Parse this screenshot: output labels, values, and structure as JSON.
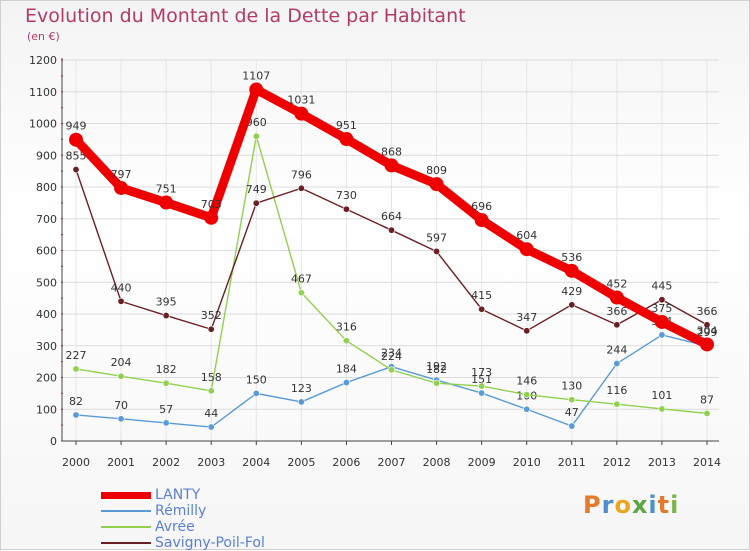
{
  "header": {
    "title": "Evolution du Montant de la Dette par Habitant",
    "subtitle": "(en €)"
  },
  "chart_data": {
    "type": "line",
    "x": [
      "2000",
      "2001",
      "2002",
      "2003",
      "2004",
      "2005",
      "2006",
      "2007",
      "2008",
      "2009",
      "2010",
      "2011",
      "2012",
      "2013",
      "2014"
    ],
    "ylim": [
      0,
      1200
    ],
    "yticks": [
      "0",
      "100",
      "200",
      "300",
      "400",
      "500",
      "600",
      "700",
      "800",
      "900",
      "1000",
      "1100",
      "1200"
    ],
    "grid": true,
    "legend_position": "bottom-left",
    "series": [
      {
        "name": "LANTY",
        "color": "#ee0000",
        "values": [
          949,
          797,
          751,
          703,
          1107,
          1031,
          951,
          868,
          809,
          696,
          604,
          536,
          452,
          375,
          304
        ],
        "labels": [
          "949",
          "797",
          "751",
          "703",
          "1107",
          "1031",
          "951",
          "868",
          "809",
          "696",
          "604",
          "536",
          "452",
          "375",
          "304"
        ]
      },
      {
        "name": "Rémilly",
        "color": "#5b9bd5",
        "values": [
          82,
          70,
          57,
          44,
          150,
          123,
          184,
          234,
          192,
          151,
          100,
          47,
          244,
          334,
          299
        ],
        "labels": [
          "82",
          "70",
          "57",
          "44",
          "150",
          "123",
          "184",
          "234",
          "192",
          "151",
          "100",
          "47",
          "244",
          "334",
          "299"
        ]
      },
      {
        "name": "Avrée",
        "color": "#92d050",
        "values": [
          227,
          204,
          182,
          158,
          960,
          467,
          316,
          224,
          182,
          173,
          146,
          130,
          116,
          101,
          87
        ],
        "labels": [
          "227",
          "204",
          "182",
          "158",
          "960",
          "467",
          "316",
          "224",
          "182",
          "173",
          "146",
          "130",
          "116",
          "101",
          "87"
        ]
      },
      {
        "name": "Savigny-Poil-Fol",
        "color": "#6b1f24",
        "values": [
          855,
          440,
          395,
          352,
          749,
          796,
          730,
          664,
          597,
          415,
          347,
          429,
          366,
          445,
          366
        ],
        "labels": [
          "855",
          "440",
          "395",
          "352",
          "749",
          "796",
          "730",
          "664",
          "597",
          "415",
          "347",
          "429",
          "366",
          "445",
          "366"
        ]
      }
    ]
  },
  "brand": {
    "letters": [
      "P",
      "r",
      "o",
      "x",
      "i",
      "t",
      "i"
    ],
    "colors": [
      "#e57a2a",
      "#4f8fce",
      "#e8a623",
      "#5aa644",
      "#4f8fce",
      "#e57a2a",
      "#7ab648"
    ]
  }
}
